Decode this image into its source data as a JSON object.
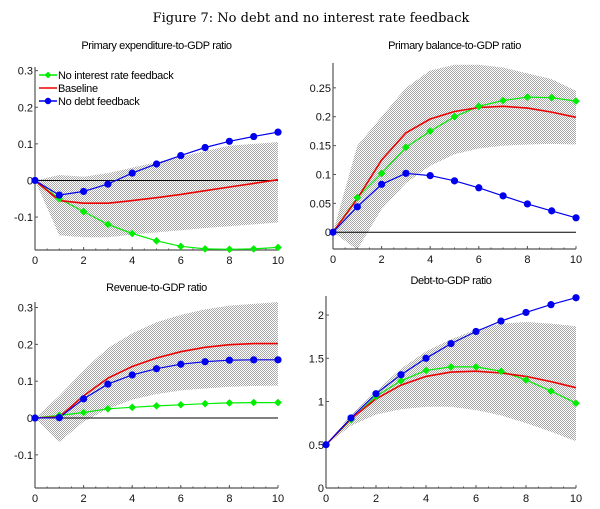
{
  "figure_title": "Figure 7: No debt and no interest rate feedback",
  "colors": {
    "no_interest_rate_feedback": "#00ee00",
    "baseline": "#ee0000",
    "no_debt_feedback": "#0000ee",
    "band": "#b4b4b4"
  },
  "legend": {
    "placement": "top-left of first panel",
    "entries": [
      {
        "key": "no_interest_rate_feedback",
        "label": "No interest rate feedback",
        "marker": "diamond"
      },
      {
        "key": "baseline",
        "label": "Baseline",
        "marker": "none"
      },
      {
        "key": "no_debt_feedback",
        "label": "No debt feedback",
        "marker": "circle"
      }
    ]
  },
  "chart_data": [
    {
      "type": "line",
      "title": "Primary expenditure-to-GDP ratio",
      "xlabel": "",
      "ylabel": "",
      "x": [
        0,
        1,
        2,
        3,
        4,
        5,
        6,
        7,
        8,
        9,
        10
      ],
      "xlim": [
        0,
        10
      ],
      "ylim": [
        -0.19,
        0.31
      ],
      "xticks": [
        0,
        2,
        4,
        6,
        8,
        10
      ],
      "yticks": [
        -0.1,
        0,
        0.1,
        0.2,
        0.3
      ],
      "ytick_labels": [
        "-0.1",
        "0",
        "0.1",
        "0.2",
        "0.3"
      ],
      "zero_line": 0,
      "band": {
        "upper": [
          0,
          0.015,
          0.01,
          0.02,
          0.035,
          0.05,
          0.065,
          0.08,
          0.095,
          0.1,
          0.105
        ],
        "lower": [
          0,
          -0.15,
          -0.155,
          -0.155,
          -0.148,
          -0.142,
          -0.136,
          -0.13,
          -0.125,
          -0.12,
          -0.115
        ]
      },
      "series": [
        {
          "key": "no_interest_rate_feedback",
          "name": "No interest rate feedback",
          "values": [
            0,
            -0.05,
            -0.085,
            -0.12,
            -0.145,
            -0.165,
            -0.18,
            -0.187,
            -0.188,
            -0.187,
            -0.183
          ]
        },
        {
          "key": "baseline",
          "name": "Baseline",
          "values": [
            0,
            -0.055,
            -0.062,
            -0.062,
            -0.055,
            -0.047,
            -0.038,
            -0.028,
            -0.018,
            -0.008,
            0.002
          ]
        },
        {
          "key": "no_debt_feedback",
          "name": "No debt feedback",
          "values": [
            0,
            -0.04,
            -0.03,
            -0.01,
            0.02,
            0.045,
            0.068,
            0.09,
            0.107,
            0.12,
            0.132
          ]
        }
      ],
      "has_legend": true
    },
    {
      "type": "line",
      "title": "Primary balance-to-GDP ratio",
      "xlabel": "",
      "ylabel": "",
      "x": [
        0,
        1,
        2,
        3,
        4,
        5,
        6,
        7,
        8,
        9,
        10
      ],
      "xlim": [
        0,
        10
      ],
      "ylim": [
        -0.029,
        0.293
      ],
      "xticks": [
        0,
        2,
        4,
        6,
        8,
        10
      ],
      "yticks": [
        0,
        0.05,
        0.1,
        0.15,
        0.2,
        0.25
      ],
      "ytick_labels": [
        "0",
        "0.05",
        "0.1",
        "0.15",
        "0.2",
        "0.25"
      ],
      "zero_line": 0,
      "band": {
        "upper": [
          0,
          0.15,
          0.2,
          0.25,
          0.28,
          0.29,
          0.29,
          0.285,
          0.275,
          0.265,
          0.245
        ],
        "lower": [
          0,
          -0.03,
          0.04,
          0.085,
          0.115,
          0.135,
          0.145,
          0.15,
          0.152,
          0.153,
          0.152
        ]
      },
      "series": [
        {
          "key": "no_interest_rate_feedback",
          "name": "No interest rate feedback",
          "values": [
            0,
            0.06,
            0.102,
            0.147,
            0.175,
            0.2,
            0.218,
            0.228,
            0.234,
            0.233,
            0.227
          ]
        },
        {
          "key": "baseline",
          "name": "Baseline",
          "values": [
            0,
            0.058,
            0.125,
            0.172,
            0.196,
            0.209,
            0.216,
            0.218,
            0.215,
            0.208,
            0.199
          ]
        },
        {
          "key": "no_debt_feedback",
          "name": "No debt feedback",
          "values": [
            0,
            0.044,
            0.083,
            0.102,
            0.098,
            0.089,
            0.077,
            0.063,
            0.049,
            0.037,
            0.025
          ]
        }
      ],
      "has_legend": false
    },
    {
      "type": "line",
      "title": "Revenue-to-GDP ratio",
      "xlabel": "",
      "ylabel": "",
      "x": [
        0,
        1,
        2,
        3,
        4,
        5,
        6,
        7,
        8,
        9,
        10
      ],
      "xlim": [
        0,
        10
      ],
      "ylim": [
        -0.19,
        0.315
      ],
      "xticks": [
        0,
        2,
        4,
        6,
        8,
        10
      ],
      "yticks": [
        -0.1,
        0,
        0.1,
        0.2,
        0.3
      ],
      "ytick_labels": [
        "-0.1",
        "0",
        "0.1",
        "0.2",
        "0.3"
      ],
      "zero_line": 0,
      "band": {
        "upper": [
          0,
          0.06,
          0.13,
          0.19,
          0.23,
          0.26,
          0.28,
          0.295,
          0.305,
          0.31,
          0.315
        ],
        "lower": [
          0,
          -0.065,
          -0.01,
          0.025,
          0.05,
          0.065,
          0.075,
          0.08,
          0.085,
          0.087,
          0.088
        ]
      },
      "series": [
        {
          "key": "no_interest_rate_feedback",
          "name": "No interest rate feedback",
          "values": [
            0,
            0.007,
            0.015,
            0.025,
            0.029,
            0.033,
            0.036,
            0.039,
            0.041,
            0.042,
            0.042
          ]
        },
        {
          "key": "baseline",
          "name": "Baseline",
          "values": [
            0,
            0.003,
            0.06,
            0.108,
            0.14,
            0.163,
            0.18,
            0.192,
            0.199,
            0.202,
            0.202
          ]
        },
        {
          "key": "no_debt_feedback",
          "name": "No debt feedback",
          "values": [
            0,
            0.001,
            0.052,
            0.092,
            0.117,
            0.134,
            0.146,
            0.153,
            0.157,
            0.158,
            0.158
          ]
        }
      ],
      "has_legend": false
    },
    {
      "type": "line",
      "title": "Debt-to-GDP ratio",
      "xlabel": "",
      "ylabel": "",
      "x": [
        0,
        1,
        2,
        3,
        4,
        5,
        6,
        7,
        8,
        9,
        10
      ],
      "xlim": [
        0,
        10
      ],
      "ylim": [
        0,
        2.22
      ],
      "xticks": [
        0,
        2,
        4,
        6,
        8,
        10
      ],
      "yticks": [
        0,
        0.5,
        1,
        1.5,
        2
      ],
      "ytick_labels": [
        "0",
        "0.5",
        "1",
        "1.5",
        "2"
      ],
      "zero_line": null,
      "band": {
        "upper": [
          0.5,
          0.85,
          1.12,
          1.38,
          1.58,
          1.72,
          1.83,
          1.9,
          1.92,
          1.9,
          1.87
        ],
        "lower": [
          0.5,
          0.72,
          0.85,
          0.91,
          0.94,
          0.94,
          0.9,
          0.84,
          0.75,
          0.65,
          0.54
        ]
      },
      "series": [
        {
          "key": "no_interest_rate_feedback",
          "name": "No interest rate feedback",
          "values": [
            0.5,
            0.79,
            1.06,
            1.24,
            1.36,
            1.4,
            1.4,
            1.35,
            1.25,
            1.12,
            0.98
          ]
        },
        {
          "key": "baseline",
          "name": "Baseline",
          "values": [
            0.5,
            0.8,
            1.03,
            1.19,
            1.29,
            1.34,
            1.35,
            1.33,
            1.29,
            1.23,
            1.16
          ]
        },
        {
          "key": "no_debt_feedback",
          "name": "No debt feedback",
          "values": [
            0.5,
            0.81,
            1.09,
            1.31,
            1.5,
            1.67,
            1.81,
            1.93,
            2.03,
            2.12,
            2.2
          ]
        }
      ],
      "has_legend": false
    }
  ]
}
